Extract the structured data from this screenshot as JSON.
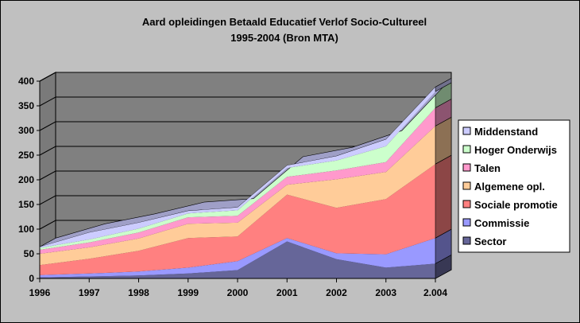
{
  "chart_data": {
    "type": "area",
    "title": "Aard opleidingen Betaald Educatief Verlof Socio-Cultureel",
    "subtitle": "1995-2004 (Bron MTA)",
    "categories": [
      "1996",
      "1997",
      "1998",
      "1999",
      "2000",
      "2001",
      "2002",
      "2003",
      "2.004"
    ],
    "stacked": true,
    "three_d": true,
    "ylim": [
      0,
      400
    ],
    "yticks": [
      0,
      50,
      100,
      150,
      200,
      250,
      300,
      350,
      400
    ],
    "grid": true,
    "legend_position": "right",
    "series": [
      {
        "name": "Sector",
        "color": "#666699",
        "values": [
          2,
          4,
          6,
          10,
          17,
          75,
          39,
          22,
          30
        ]
      },
      {
        "name": "Commissie",
        "color": "#9999ff",
        "values": [
          5,
          6,
          8,
          12,
          18,
          7,
          12,
          27,
          52
        ]
      },
      {
        "name": "Sociale promotie",
        "color": "#ff8080",
        "values": [
          20,
          30,
          42,
          60,
          50,
          88,
          92,
          112,
          150
        ]
      },
      {
        "name": "Algemene opl.",
        "color": "#ffcc99",
        "values": [
          23,
          23,
          25,
          29,
          28,
          20,
          58,
          55,
          77
        ]
      },
      {
        "name": "Talen",
        "color": "#ff99cc",
        "values": [
          8,
          10,
          12,
          13,
          14,
          16,
          18,
          20,
          37
        ]
      },
      {
        "name": "Hoger Onderwijs",
        "color": "#ccffcc",
        "values": [
          4,
          6,
          8,
          8,
          11,
          18,
          20,
          32,
          33
        ]
      },
      {
        "name": "Middenstand",
        "color": "#ccccff",
        "values": [
          2,
          14,
          12,
          5,
          6,
          5,
          9,
          14,
          9
        ]
      }
    ]
  }
}
